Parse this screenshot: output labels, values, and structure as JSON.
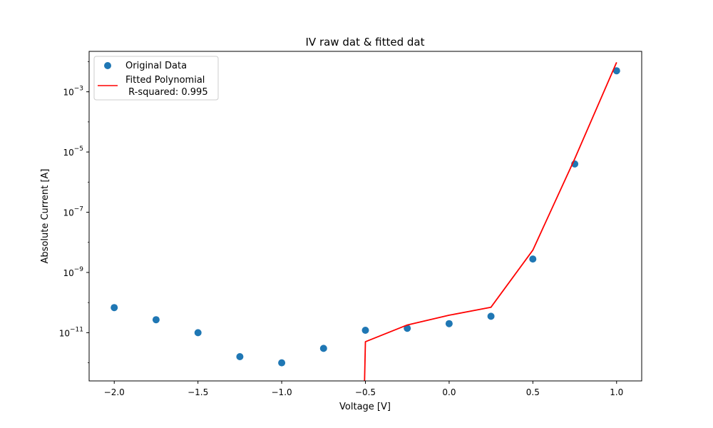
{
  "chart_data": {
    "type": "scatter",
    "title": "IV raw dat & fitted dat",
    "xlabel": "Voltage [V]",
    "ylabel": "Absolute Current [A]",
    "xlim": [
      -2.15,
      1.15
    ],
    "ylim": [
      2.5e-13,
      0.022
    ],
    "y_scale": "log",
    "grid": false,
    "legend_position": "top-left",
    "x_ticks": [
      -2.0,
      -1.5,
      -1.0,
      -0.5,
      0.0,
      0.5,
      1.0
    ],
    "x_tick_labels": [
      "−2.0",
      "−1.5",
      "−1.0",
      "−0.5",
      "0.0",
      "0.5",
      "1.0"
    ],
    "y_ticks": [
      1e-11,
      1e-09,
      1e-07,
      1e-05,
      0.001
    ],
    "y_tick_labels": [
      {
        "base": "10",
        "exp": "−11"
      },
      {
        "base": "10",
        "exp": "−9"
      },
      {
        "base": "10",
        "exp": "−7"
      },
      {
        "base": "10",
        "exp": "−5"
      },
      {
        "base": "10",
        "exp": "−3"
      }
    ],
    "series": [
      {
        "name": "Original Data",
        "kind": "scatter",
        "color": "#1f77b4",
        "x": [
          -2.0,
          -1.75,
          -1.5,
          -1.25,
          -1.0,
          -0.75,
          -0.5,
          -0.25,
          0.0,
          0.25,
          0.5,
          0.75,
          1.0
        ],
        "y": [
          6.8e-11,
          2.7e-11,
          1e-11,
          1.6e-12,
          1e-12,
          3e-12,
          1.2e-11,
          1.4e-11,
          2e-11,
          3.5e-11,
          2.8e-09,
          4e-06,
          0.005
        ]
      },
      {
        "name": "Fitted Polynomial\n R-squared: 0.995",
        "name_lines": [
          "Fitted Polynomial",
          " R-squared: 0.995"
        ],
        "kind": "line",
        "color": "#ff0000",
        "x": [
          -0.505,
          -0.5,
          -0.25,
          0.0,
          0.25,
          0.5,
          0.75,
          1.0
        ],
        "y": [
          2.5e-13,
          5e-12,
          1.8e-11,
          3.8e-11,
          7e-11,
          5.5e-09,
          6e-06,
          0.0095
        ]
      }
    ]
  }
}
